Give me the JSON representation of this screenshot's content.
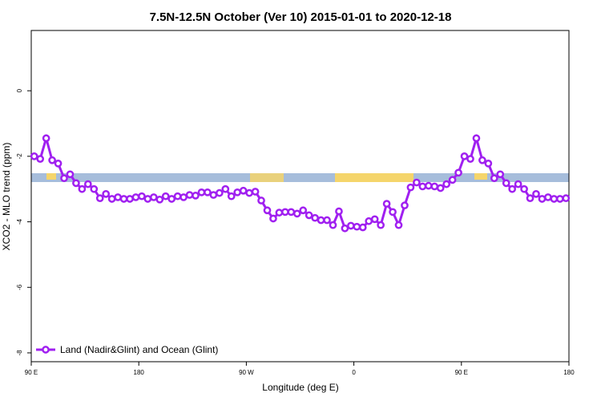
{
  "chart_data": {
    "type": "line",
    "title": "7.5N-12.5N October (Ver 10)   2015-01-01 to 2020-12-18",
    "xlabel": "Longitude (deg E)",
    "ylabel": "XCO2 - MLO trend (ppm)",
    "x": [
      92.5,
      97.5,
      102.5,
      107.5,
      112.5,
      117.5,
      122.5,
      127.5,
      132.5,
      137.5,
      142.5,
      147.5,
      152.5,
      157.5,
      162.5,
      167.5,
      172.5,
      177.5,
      182.5,
      187.5,
      192.5,
      197.5,
      202.5,
      207.5,
      212.5,
      217.5,
      222.5,
      227.5,
      232.5,
      237.5,
      242.5,
      247.5,
      252.5,
      257.5,
      262.5,
      267.5,
      272.5,
      277.5,
      282.5,
      287.5,
      292.5,
      297.5,
      302.5,
      307.5,
      312.5,
      317.5,
      322.5,
      327.5,
      332.5,
      337.5,
      342.5,
      347.5,
      352.5,
      357.5,
      362.5,
      367.5,
      372.5,
      377.5,
      382.5,
      387.5,
      392.5,
      397.5,
      402.5,
      407.5,
      412.5,
      417.5,
      422.5,
      427.5,
      432.5,
      437.5,
      442.5,
      447.5,
      452.5,
      457.5,
      462.5,
      467.5,
      472.5,
      477.5,
      482.5,
      487.5,
      492.5,
      497.5,
      502.5,
      507.5,
      512.5,
      517.5,
      522.5,
      527.5,
      532.5,
      537.5
    ],
    "series": [
      {
        "name": "Land (Nadir&Glint) and Ocean (Glint)",
        "color": "#a020f0",
        "values": [
          -2.0,
          -2.08,
          -1.45,
          -2.12,
          -2.22,
          -2.67,
          -2.55,
          -2.82,
          -3.0,
          -2.85,
          -3.0,
          -3.28,
          -3.15,
          -3.3,
          -3.25,
          -3.3,
          -3.3,
          -3.25,
          -3.22,
          -3.3,
          -3.25,
          -3.32,
          -3.22,
          -3.3,
          -3.22,
          -3.25,
          -3.18,
          -3.2,
          -3.1,
          -3.1,
          -3.18,
          -3.12,
          -3.0,
          -3.22,
          -3.1,
          -3.05,
          -3.12,
          -3.08,
          -3.35,
          -3.65,
          -3.9,
          -3.72,
          -3.7,
          -3.7,
          -3.75,
          -3.65,
          -3.8,
          -3.88,
          -3.95,
          -3.95,
          -4.1,
          -3.68,
          -4.2,
          -4.12,
          -4.15,
          -4.17,
          -3.98,
          -3.92,
          -4.1,
          -3.45,
          -3.7,
          -4.1,
          -3.5,
          -2.95,
          -2.8,
          -2.92,
          -2.9,
          -2.92,
          -2.97,
          -2.85,
          -2.72,
          -2.5,
          -2.0,
          -2.08,
          -1.45,
          -2.12,
          -2.22,
          -2.67,
          -2.55,
          -2.82,
          -3.0,
          -2.85,
          -3.0,
          -3.28,
          -3.15,
          -3.3,
          -3.25,
          -3.3,
          -3.3,
          -3.28
        ]
      }
    ],
    "xlim": [
      90,
      540
    ],
    "xticks": [
      {
        "value": 90,
        "label": "90 E"
      },
      180,
      {
        "value": 270,
        "label": "90 W"
      },
      {
        "value": 360,
        "label": "0"
      },
      {
        "value": 450,
        "label": "90 E"
      },
      {
        "value": 540,
        "label": "180"
      }
    ],
    "ylim": [
      -8.27,
      1.84
    ],
    "yticks": [
      0,
      -2,
      -4,
      -6,
      -8
    ],
    "legend": "bottom-left"
  }
}
